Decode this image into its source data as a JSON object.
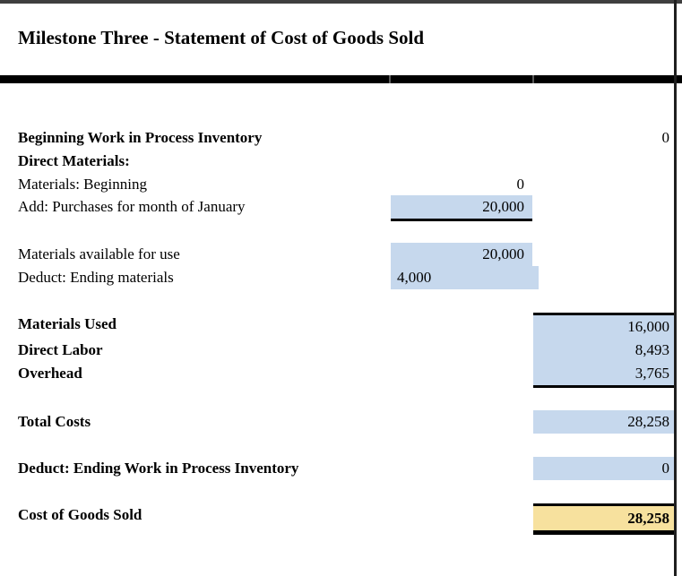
{
  "title": "Milestone Three - Statement of Cost of Goods Sold",
  "colors": {
    "input_fill_blue": "#C6D8ED",
    "result_fill_yellow": "#F7E19E",
    "rule_black": "#000000",
    "frame_gray": "#1F1F1F",
    "top_edge_gray": "#3F3F3F"
  },
  "statement": {
    "rows": [
      {
        "label": "Beginning Work in Process Inventory",
        "bold": true,
        "value": "0",
        "col": "right",
        "fill": "none"
      },
      {
        "label": "Direct Materials:",
        "bold": true,
        "value": null,
        "col": "none",
        "fill": "none"
      },
      {
        "label": "Materials: Beginning",
        "bold": false,
        "value": "0",
        "col": "mid",
        "fill": "none"
      },
      {
        "label": "Add: Purchases for month of January",
        "bold": false,
        "value": "20,000",
        "col": "mid",
        "fill": "blue",
        "border_bottom": "thin"
      },
      {
        "label": "Materials available for use",
        "bold": false,
        "value": "20,000",
        "col": "mid",
        "fill": "blue"
      },
      {
        "label": "Deduct: Ending materials",
        "bold": false,
        "value": "4,000",
        "col": "mid",
        "fill": "blue",
        "align": "left"
      },
      {
        "label": "Materials Used",
        "bold": true,
        "value": "16,000",
        "col": "right",
        "fill": "blue",
        "border_top": "thin"
      },
      {
        "label": "Direct Labor",
        "bold": true,
        "value": "8,493",
        "col": "right",
        "fill": "blue"
      },
      {
        "label": "Overhead",
        "bold": true,
        "value": "3,765",
        "col": "right",
        "fill": "blue",
        "border_bottom": "thin"
      },
      {
        "label": "Total Costs",
        "bold": true,
        "value": "28,258",
        "col": "right",
        "fill": "blue"
      },
      {
        "label": "Deduct: Ending Work in Process Inventory",
        "bold": true,
        "value": "0",
        "col": "right",
        "fill": "blue"
      },
      {
        "label": "Cost of Goods Sold",
        "bold": true,
        "value": "28,258",
        "value_bold": true,
        "col": "right",
        "fill": "yellow",
        "border_top": "thin",
        "border_bottom": "thick"
      }
    ]
  }
}
